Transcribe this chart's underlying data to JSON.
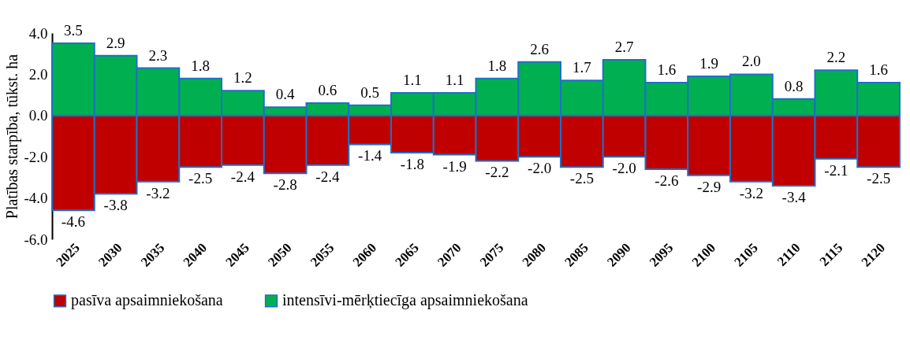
{
  "chart_data": {
    "type": "bar",
    "stacked": true,
    "ylabel": "Platības starpība, tūkst. ha",
    "categories": [
      "2025",
      "2030",
      "2035",
      "2040",
      "2045",
      "2050",
      "2055",
      "2060",
      "2065",
      "2070",
      "2075",
      "2080",
      "2085",
      "2090",
      "2095",
      "2100",
      "2105",
      "2110",
      "2115",
      "2120"
    ],
    "series": [
      {
        "name": "pasīva apsaimniekošana",
        "color": "#c00000",
        "values": [
          -4.6,
          -3.8,
          -3.2,
          -2.5,
          -2.4,
          -2.8,
          -2.4,
          -1.4,
          -1.8,
          -1.9,
          -2.2,
          -2.0,
          -2.5,
          -2.0,
          -2.6,
          -2.9,
          -3.2,
          -3.4,
          -2.1,
          -2.5
        ],
        "value_labels": [
          "-4.6",
          "-3.8",
          "-3.2",
          "-2.5",
          "-2.4",
          "-2.8",
          "-2.4",
          "-1.4",
          "-1.8",
          "-1.9",
          "-2.2",
          "-2.0",
          "-2.5",
          "-2.0",
          "-2.6",
          "-2.9",
          "-3.2",
          "-3.4",
          "-2.1",
          "-2.5"
        ]
      },
      {
        "name": "intensīvi-mērķtiecīga apsaimniekošana",
        "color": "#00b050",
        "values": [
          3.5,
          2.9,
          2.3,
          1.8,
          1.2,
          0.4,
          0.6,
          0.5,
          1.1,
          1.1,
          1.8,
          2.6,
          1.7,
          2.7,
          1.6,
          1.9,
          2.0,
          0.8,
          2.2,
          1.6
        ],
        "value_labels": [
          "3.5",
          "2.9",
          "2.3",
          "1.8",
          "1.2",
          "0.4",
          "0.6",
          "0.5",
          "1.1",
          "1.1",
          "1.8",
          "2.6",
          "1.7",
          "2.7",
          "1.6",
          "1.9",
          "2.0",
          "0.8",
          "2.2",
          "1.6"
        ]
      }
    ],
    "ylim": [
      -6,
      4
    ],
    "yticks": [
      {
        "value": -6,
        "label": "-6.0"
      },
      {
        "value": -4,
        "label": "-4.0"
      },
      {
        "value": -2,
        "label": "-2.0"
      },
      {
        "value": 0,
        "label": "0.0"
      },
      {
        "value": 2,
        "label": "2.0"
      },
      {
        "value": 4,
        "label": "4.0"
      }
    ],
    "grid": false,
    "legend": "bottom"
  }
}
